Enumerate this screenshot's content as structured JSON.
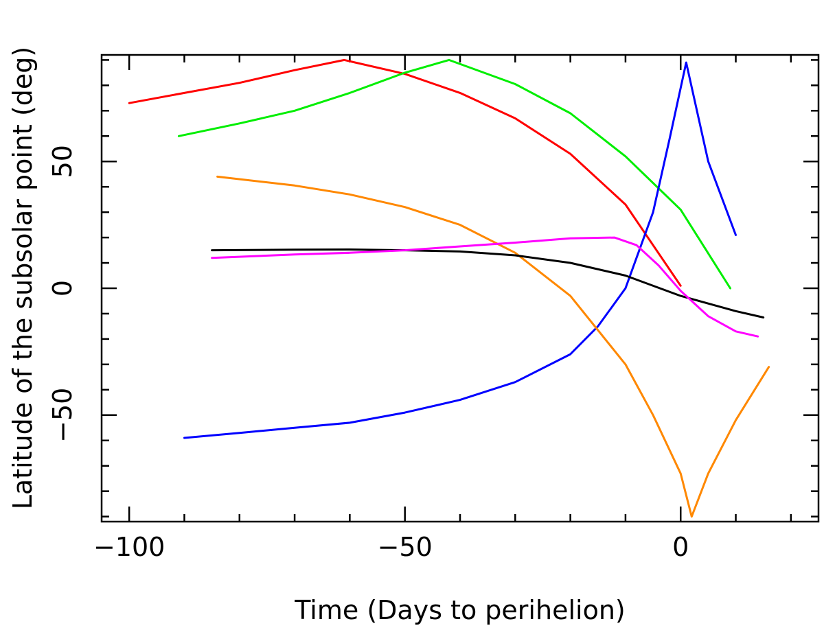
{
  "chart_data": {
    "type": "line",
    "xlabel": "Time (Days to perihelion)",
    "ylabel": "Latitude of the subsolar point (deg)",
    "xlim": [
      -105,
      25
    ],
    "ylim": [
      -92,
      92
    ],
    "xticks_major": [
      -100,
      -50,
      0
    ],
    "xticks_minor": [
      -90,
      -80,
      -70,
      -60,
      -40,
      -30,
      -20,
      -10,
      10,
      20
    ],
    "yticks_major": [
      -50,
      0,
      50
    ],
    "yticks_minor": [
      -90,
      -80,
      -70,
      -60,
      -40,
      -30,
      -20,
      -10,
      10,
      20,
      30,
      40,
      60,
      70,
      80,
      90
    ],
    "grid": false,
    "legend": "none",
    "series": [
      {
        "color": "#ff0000",
        "points": [
          [
            -100,
            73
          ],
          [
            -90,
            77
          ],
          [
            -80,
            81
          ],
          [
            -70,
            86
          ],
          [
            -61,
            90
          ],
          [
            -50,
            84.5
          ],
          [
            -40,
            77
          ],
          [
            -30,
            67
          ],
          [
            -20,
            53
          ],
          [
            -10,
            33
          ],
          [
            0,
            1
          ]
        ]
      },
      {
        "color": "#00ee00",
        "points": [
          [
            -91,
            60
          ],
          [
            -80,
            65
          ],
          [
            -70,
            70
          ],
          [
            -60,
            77
          ],
          [
            -50,
            85
          ],
          [
            -42,
            90
          ],
          [
            -30,
            80.5
          ],
          [
            -20,
            69
          ],
          [
            -10,
            52
          ],
          [
            0,
            31
          ],
          [
            9,
            0
          ]
        ]
      },
      {
        "color": "#0000ff",
        "points": [
          [
            -90,
            -59
          ],
          [
            -80,
            -57
          ],
          [
            -70,
            -55
          ],
          [
            -60,
            -53
          ],
          [
            -50,
            -49
          ],
          [
            -40,
            -44
          ],
          [
            -30,
            -37
          ],
          [
            -20,
            -26
          ],
          [
            -15,
            -15
          ],
          [
            -10,
            0
          ],
          [
            -5,
            30
          ],
          [
            -2,
            59
          ],
          [
            1,
            89
          ],
          [
            5,
            50
          ],
          [
            10,
            21
          ]
        ]
      },
      {
        "color": "#ff8800",
        "points": [
          [
            -84,
            44
          ],
          [
            -70,
            40.5
          ],
          [
            -60,
            37
          ],
          [
            -50,
            32
          ],
          [
            -40,
            25
          ],
          [
            -30,
            14
          ],
          [
            -20,
            -3
          ],
          [
            -10,
            -30
          ],
          [
            -5,
            -50
          ],
          [
            0,
            -73
          ],
          [
            2,
            -90
          ],
          [
            5,
            -73
          ],
          [
            10,
            -52
          ],
          [
            16,
            -31
          ]
        ]
      },
      {
        "color": "#000000",
        "points": [
          [
            -85,
            15
          ],
          [
            -70,
            15.2
          ],
          [
            -60,
            15.3
          ],
          [
            -50,
            15
          ],
          [
            -40,
            14.5
          ],
          [
            -30,
            13
          ],
          [
            -20,
            10
          ],
          [
            -10,
            5
          ],
          [
            0,
            -3
          ],
          [
            10,
            -9
          ],
          [
            15,
            -11.5
          ]
        ]
      },
      {
        "color": "#ff00ff",
        "points": [
          [
            -85,
            12
          ],
          [
            -70,
            13.3
          ],
          [
            -60,
            14
          ],
          [
            -50,
            15
          ],
          [
            -40,
            16.5
          ],
          [
            -30,
            18
          ],
          [
            -20,
            19.7
          ],
          [
            -12,
            20
          ],
          [
            -8,
            17
          ],
          [
            -4,
            9
          ],
          [
            0,
            -1
          ],
          [
            5,
            -11
          ],
          [
            10,
            -17
          ],
          [
            14,
            -19
          ]
        ]
      }
    ]
  }
}
